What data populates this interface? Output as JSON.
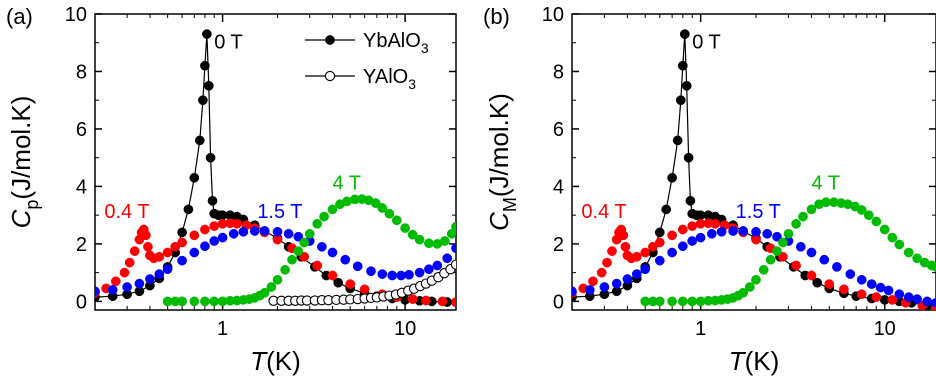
{
  "chart_data": [
    {
      "panel_label": "(a)",
      "type": "scatter",
      "x_scale": "log",
      "xlim": [
        0.2,
        19
      ],
      "ylim": [
        -0.3,
        10
      ],
      "yticks": [
        0,
        2,
        4,
        6,
        8,
        10
      ],
      "xticks": [
        1,
        10
      ],
      "xtick_labels": [
        "1",
        "10"
      ],
      "xlabel": {
        "main": "T",
        "unit": "(K)"
      },
      "ylabel": {
        "main": "C",
        "sub": "p",
        "unit": "(J/mol.K)"
      },
      "legend": {
        "position": "top-right",
        "entries": [
          {
            "base": "YbAlO",
            "sub": "3",
            "marker": "filled",
            "color": "#000000"
          },
          {
            "base": "YAlO",
            "sub": "3",
            "marker": "open",
            "color": "#000000"
          }
        ]
      },
      "annotations": [
        {
          "text": "0 T",
          "color": "#000000",
          "at": [
            0.9,
            8.8
          ]
        },
        {
          "text": "0.4 T",
          "color": "#ff0000",
          "at": [
            0.225,
            2.9
          ]
        },
        {
          "text": "1.5 T",
          "color": "#0000ff",
          "at": [
            1.55,
            2.9
          ]
        },
        {
          "text": "4 T",
          "color": "#00bb00",
          "at": [
            4.0,
            3.9
          ]
        }
      ],
      "series": [
        {
          "field": "0 T",
          "color": "#000000",
          "marker": "filled",
          "line": true,
          "x": [
            0.2,
            0.25,
            0.3,
            0.35,
            0.4,
            0.45,
            0.5,
            0.55,
            0.6,
            0.65,
            0.7,
            0.75,
            0.78,
            0.8,
            0.82,
            0.84,
            0.86,
            0.88,
            0.9,
            0.95,
            1.0,
            1.1,
            1.2,
            1.3,
            1.5,
            1.7,
            2.0,
            2.3,
            2.7,
            3.2,
            3.7,
            4.3,
            5.0,
            6.0,
            7.0,
            8.5,
            10.0,
            12.0,
            14.0,
            17.0,
            19.0
          ],
          "y": [
            0.15,
            0.18,
            0.25,
            0.35,
            0.55,
            0.8,
            1.2,
            1.7,
            2.4,
            3.2,
            4.3,
            5.6,
            7.0,
            8.2,
            9.3,
            7.5,
            5.0,
            3.5,
            3.05,
            3.0,
            3.0,
            3.0,
            2.95,
            2.85,
            2.65,
            2.45,
            2.2,
            1.9,
            1.55,
            1.2,
            0.9,
            0.65,
            0.45,
            0.28,
            0.18,
            0.1,
            0.05,
            0.02,
            0.0,
            -0.02,
            -0.03
          ]
        },
        {
          "field": "0.4 T",
          "color": "#ff0000",
          "marker": "filled",
          "line": false,
          "x": [
            0.2,
            0.23,
            0.26,
            0.29,
            0.31,
            0.33,
            0.35,
            0.36,
            0.37,
            0.38,
            0.39,
            0.4,
            0.42,
            0.45,
            0.5,
            0.55,
            0.6,
            0.7,
            0.8,
            0.9,
            1.0,
            1.1,
            1.2,
            1.35,
            1.5,
            1.7,
            2.0,
            2.4,
            2.8,
            3.3,
            4.0,
            5.0,
            6.0,
            7.5,
            9.0,
            11.0,
            13.0,
            16.0,
            19.0
          ],
          "y": [
            0.3,
            0.45,
            0.7,
            1.0,
            1.35,
            1.75,
            2.15,
            2.4,
            2.5,
            2.3,
            1.9,
            1.6,
            1.5,
            1.55,
            1.7,
            1.9,
            2.05,
            2.3,
            2.5,
            2.62,
            2.7,
            2.72,
            2.7,
            2.65,
            2.55,
            2.4,
            2.15,
            1.85,
            1.55,
            1.25,
            0.9,
            0.6,
            0.42,
            0.25,
            0.15,
            0.08,
            0.03,
            0.0,
            -0.02
          ]
        },
        {
          "field": "1.5 T",
          "color": "#0000ff",
          "marker": "filled",
          "line": false,
          "x": [
            0.2,
            0.25,
            0.3,
            0.35,
            0.4,
            0.45,
            0.5,
            0.6,
            0.7,
            0.8,
            0.9,
            1.0,
            1.15,
            1.3,
            1.5,
            1.7,
            2.0,
            2.3,
            2.6,
            3.0,
            3.5,
            4.0,
            4.7,
            5.5,
            6.5,
            7.5,
            8.5,
            9.5,
            10.5,
            12.0,
            13.5,
            15.0,
            17.0,
            19.0
          ],
          "y": [
            0.35,
            0.4,
            0.5,
            0.62,
            0.78,
            0.95,
            1.12,
            1.42,
            1.7,
            1.92,
            2.1,
            2.22,
            2.35,
            2.42,
            2.45,
            2.45,
            2.42,
            2.35,
            2.25,
            2.1,
            1.9,
            1.7,
            1.45,
            1.22,
            1.05,
            0.95,
            0.9,
            0.9,
            0.93,
            1.0,
            1.12,
            1.25,
            1.5,
            1.85
          ]
        },
        {
          "field": "4 T",
          "color": "#00bb00",
          "marker": "filled",
          "line": false,
          "x": [
            0.5,
            0.55,
            0.6,
            0.7,
            0.8,
            0.9,
            1.0,
            1.1,
            1.2,
            1.3,
            1.4,
            1.5,
            1.6,
            1.7,
            1.85,
            2.0,
            2.2,
            2.4,
            2.6,
            2.8,
            3.0,
            3.3,
            3.6,
            4.0,
            4.4,
            4.8,
            5.3,
            5.8,
            6.3,
            6.9,
            7.5,
            8.2,
            9.0,
            10.0,
            11.0,
            12.0,
            13.5,
            15.0,
            16.5,
            18.0,
            19.0
          ],
          "y": [
            0.0,
            0.0,
            0.0,
            0.0,
            0.0,
            0.0,
            0.0,
            0.02,
            0.03,
            0.05,
            0.08,
            0.12,
            0.2,
            0.3,
            0.5,
            0.75,
            1.1,
            1.45,
            1.75,
            2.05,
            2.35,
            2.7,
            2.95,
            3.2,
            3.38,
            3.48,
            3.55,
            3.56,
            3.52,
            3.42,
            3.25,
            3.05,
            2.82,
            2.55,
            2.32,
            2.15,
            2.02,
            2.0,
            2.1,
            2.35,
            2.6
          ]
        },
        {
          "field": "YAlO3",
          "color": "#000000",
          "marker": "open",
          "line": true,
          "x": [
            1.9,
            2.1,
            2.3,
            2.5,
            2.7,
            2.9,
            3.2,
            3.5,
            3.8,
            4.2,
            4.6,
            5.0,
            5.5,
            6.0,
            6.5,
            7.0,
            7.6,
            8.2,
            8.9,
            9.6,
            10.4,
            11.2,
            12.1,
            13.0,
            14.0,
            15.2,
            16.4,
            17.7,
            19.0
          ],
          "y": [
            0.02,
            0.02,
            0.02,
            0.02,
            0.03,
            0.03,
            0.03,
            0.04,
            0.04,
            0.05,
            0.06,
            0.07,
            0.08,
            0.1,
            0.12,
            0.14,
            0.17,
            0.2,
            0.24,
            0.3,
            0.37,
            0.44,
            0.53,
            0.62,
            0.72,
            0.84,
            0.98,
            1.12,
            1.28
          ]
        }
      ]
    },
    {
      "panel_label": "(b)",
      "type": "scatter",
      "x_scale": "log",
      "xlim": [
        0.2,
        19
      ],
      "ylim": [
        -0.3,
        10
      ],
      "yticks": [
        0,
        2,
        4,
        6,
        8,
        10
      ],
      "xticks": [
        1,
        10
      ],
      "xtick_labels": [
        "1",
        "10"
      ],
      "xlabel": {
        "main": "T",
        "unit": "(K)"
      },
      "ylabel": {
        "main": "C",
        "sub": "M",
        "unit": "(J/mol.K)"
      },
      "annotations": [
        {
          "text": "0 T",
          "color": "#000000",
          "at": [
            0.9,
            8.8
          ]
        },
        {
          "text": "0.4 T",
          "color": "#ff0000",
          "at": [
            0.225,
            2.9
          ]
        },
        {
          "text": "1.5 T",
          "color": "#0000ff",
          "at": [
            1.55,
            2.9
          ]
        },
        {
          "text": "4 T",
          "color": "#00bb00",
          "at": [
            4.0,
            3.9
          ]
        }
      ],
      "series": [
        {
          "field": "0 T",
          "color": "#000000",
          "marker": "filled",
          "line": true,
          "x": [
            0.2,
            0.25,
            0.3,
            0.35,
            0.4,
            0.45,
            0.5,
            0.55,
            0.6,
            0.65,
            0.7,
            0.75,
            0.78,
            0.8,
            0.82,
            0.84,
            0.86,
            0.88,
            0.9,
            0.95,
            1.0,
            1.1,
            1.2,
            1.3,
            1.5,
            1.7,
            2.0,
            2.3,
            2.7,
            3.2,
            3.7,
            4.3,
            5.0,
            6.0,
            7.0,
            8.5,
            10.0,
            12.0,
            14.0,
            17.0,
            19.0
          ],
          "y": [
            0.15,
            0.18,
            0.25,
            0.35,
            0.55,
            0.8,
            1.2,
            1.7,
            2.4,
            3.2,
            4.3,
            5.6,
            7.0,
            8.2,
            9.3,
            7.5,
            5.0,
            3.5,
            3.05,
            3.0,
            3.0,
            3.0,
            2.95,
            2.85,
            2.65,
            2.45,
            2.2,
            1.9,
            1.55,
            1.2,
            0.9,
            0.65,
            0.45,
            0.28,
            0.18,
            0.1,
            0.05,
            0.0,
            -0.05,
            -0.15,
            -0.22
          ]
        },
        {
          "field": "0.4 T",
          "color": "#ff0000",
          "marker": "filled",
          "line": false,
          "x": [
            0.2,
            0.23,
            0.26,
            0.29,
            0.31,
            0.33,
            0.35,
            0.36,
            0.37,
            0.38,
            0.39,
            0.4,
            0.42,
            0.45,
            0.5,
            0.55,
            0.6,
            0.7,
            0.8,
            0.9,
            1.0,
            1.1,
            1.2,
            1.35,
            1.5,
            1.7,
            2.0,
            2.4,
            2.8,
            3.3,
            4.0,
            5.0,
            6.0,
            7.5,
            9.0,
            11.0,
            13.0,
            16.0,
            19.0
          ],
          "y": [
            0.3,
            0.45,
            0.7,
            1.0,
            1.35,
            1.75,
            2.15,
            2.4,
            2.5,
            2.3,
            1.9,
            1.6,
            1.5,
            1.55,
            1.7,
            1.9,
            2.05,
            2.3,
            2.5,
            2.62,
            2.7,
            2.72,
            2.7,
            2.65,
            2.55,
            2.4,
            2.15,
            1.85,
            1.55,
            1.25,
            0.9,
            0.6,
            0.42,
            0.25,
            0.15,
            0.05,
            -0.05,
            -0.15,
            -0.22
          ]
        },
        {
          "field": "1.5 T",
          "color": "#0000ff",
          "marker": "filled",
          "line": false,
          "x": [
            0.2,
            0.25,
            0.3,
            0.35,
            0.4,
            0.45,
            0.5,
            0.6,
            0.7,
            0.8,
            0.9,
            1.0,
            1.15,
            1.3,
            1.5,
            1.7,
            2.0,
            2.3,
            2.6,
            3.0,
            3.5,
            4.0,
            4.7,
            5.5,
            6.5,
            7.5,
            8.5,
            9.5,
            10.5,
            12.0,
            13.5,
            15.0,
            17.0,
            19.0
          ],
          "y": [
            0.35,
            0.4,
            0.5,
            0.62,
            0.78,
            0.95,
            1.12,
            1.42,
            1.7,
            1.92,
            2.1,
            2.22,
            2.35,
            2.42,
            2.45,
            2.45,
            2.42,
            2.35,
            2.25,
            2.1,
            1.9,
            1.7,
            1.45,
            1.2,
            0.95,
            0.75,
            0.6,
            0.48,
            0.38,
            0.25,
            0.15,
            0.08,
            0.0,
            -0.05
          ]
        },
        {
          "field": "4 T",
          "color": "#00bb00",
          "marker": "filled",
          "line": false,
          "x": [
            0.5,
            0.55,
            0.6,
            0.7,
            0.8,
            0.9,
            1.0,
            1.1,
            1.2,
            1.3,
            1.4,
            1.5,
            1.6,
            1.7,
            1.85,
            2.0,
            2.2,
            2.4,
            2.6,
            2.8,
            3.0,
            3.3,
            3.6,
            4.0,
            4.4,
            4.8,
            5.3,
            5.8,
            6.3,
            6.9,
            7.5,
            8.2,
            9.0,
            10.0,
            11.0,
            12.0,
            13.5,
            15.0,
            16.5,
            18.0,
            19.0
          ],
          "y": [
            0.0,
            0.0,
            0.0,
            0.0,
            0.0,
            0.0,
            0.0,
            0.02,
            0.03,
            0.05,
            0.08,
            0.12,
            0.2,
            0.3,
            0.5,
            0.75,
            1.1,
            1.45,
            1.75,
            2.05,
            2.35,
            2.7,
            2.95,
            3.2,
            3.38,
            3.45,
            3.45,
            3.42,
            3.38,
            3.3,
            3.18,
            3.0,
            2.78,
            2.5,
            2.22,
            1.98,
            1.7,
            1.5,
            1.35,
            1.25,
            1.2
          ]
        }
      ]
    }
  ]
}
